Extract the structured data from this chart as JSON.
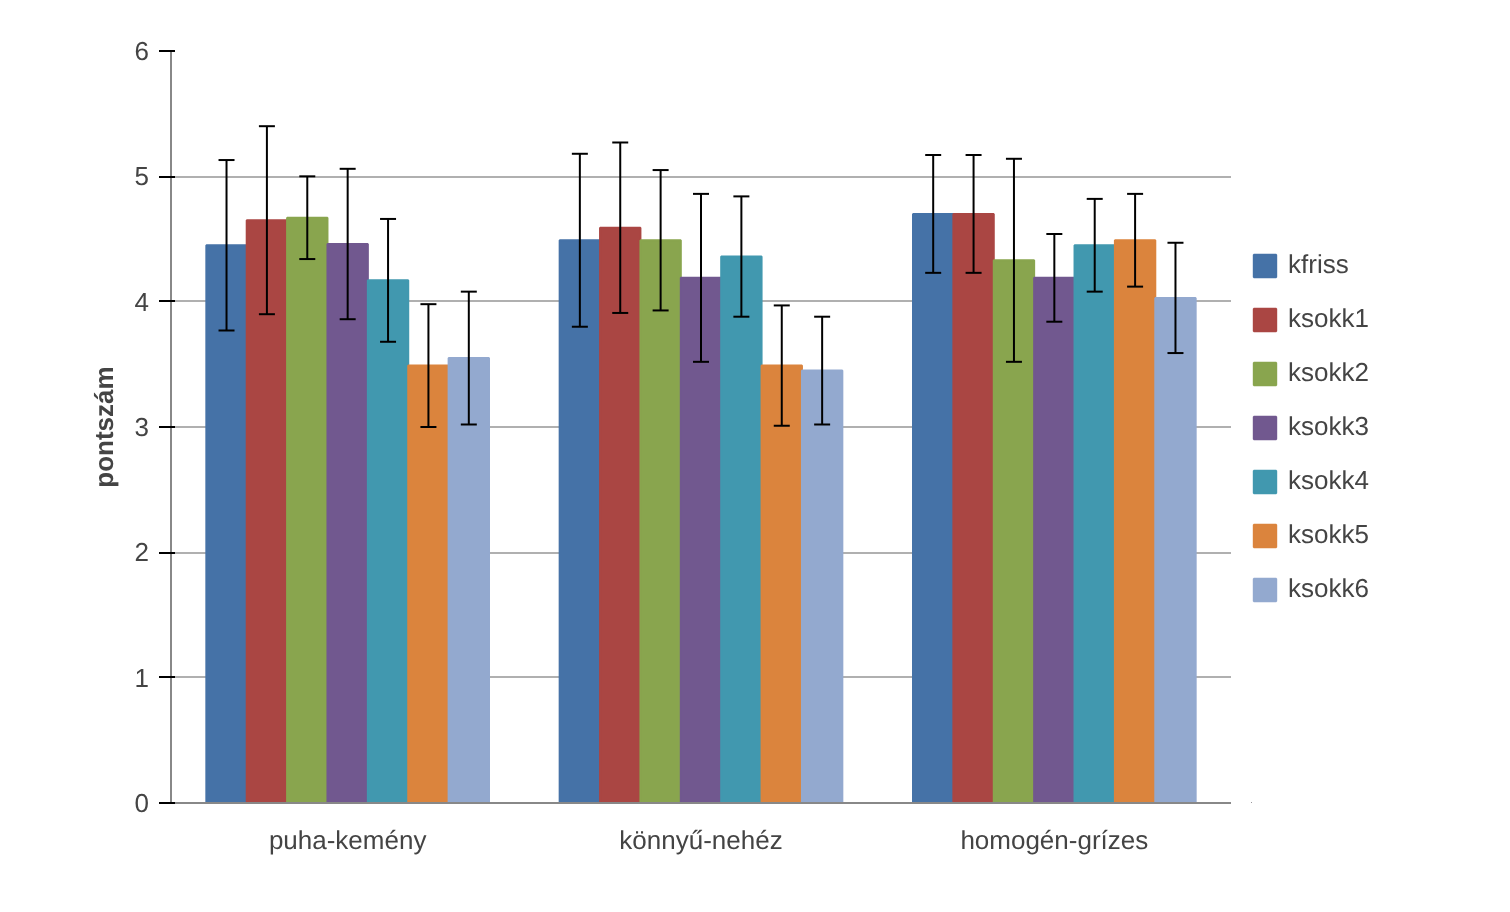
{
  "chart_data": {
    "type": "bar",
    "ylabel": "pontszám",
    "categories": [
      "puha-kemény",
      "könnyű-nehéz",
      "homogén-grízes"
    ],
    "ylim": [
      0,
      6
    ],
    "yticks": [
      0,
      1,
      2,
      3,
      4,
      5,
      6
    ],
    "grid": "y",
    "legend": "right",
    "series": [
      {
        "name": "kfriss",
        "color": "#4572a7",
        "values": [
          4.45,
          4.49,
          4.7
        ],
        "errors": [
          0.68,
          0.69,
          0.47
        ]
      },
      {
        "name": "ksokk1",
        "color": "#aa4643",
        "values": [
          4.65,
          4.59,
          4.7
        ],
        "errors": [
          0.75,
          0.68,
          0.47
        ]
      },
      {
        "name": "ksokk2",
        "color": "#89a54e",
        "values": [
          4.67,
          4.49,
          4.33
        ],
        "errors": [
          0.33,
          0.56,
          0.81
        ]
      },
      {
        "name": "ksokk3",
        "color": "#71588f",
        "values": [
          4.46,
          4.19,
          4.19
        ],
        "errors": [
          0.6,
          0.67,
          0.35
        ]
      },
      {
        "name": "ksokk4",
        "color": "#4198af",
        "values": [
          4.17,
          4.36,
          4.45
        ],
        "errors": [
          0.49,
          0.48,
          0.37
        ]
      },
      {
        "name": "ksokk5",
        "color": "#db843d",
        "values": [
          3.49,
          3.49,
          4.49
        ],
        "errors": [
          0.49,
          0.48,
          0.37
        ]
      },
      {
        "name": "ksokk6",
        "color": "#93a9cf",
        "values": [
          3.55,
          3.45,
          4.03
        ],
        "errors": [
          0.53,
          0.43,
          0.44
        ]
      }
    ]
  }
}
